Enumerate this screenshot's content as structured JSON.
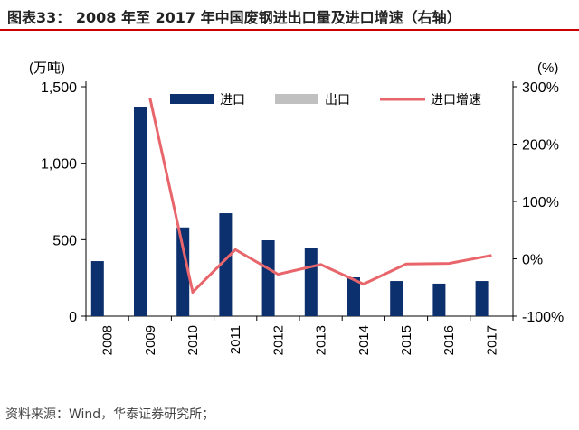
{
  "title": "图表33：  2008 年至 2017 年中国废钢进出口量及进口增速（右轴）",
  "source": "资料来源：Wind，华泰证券研究所；",
  "chart_data": {
    "type": "bar",
    "categories": [
      "2008",
      "2009",
      "2010",
      "2011",
      "2012",
      "2013",
      "2014",
      "2015",
      "2016",
      "2017"
    ],
    "series": [
      {
        "name": "进口",
        "type": "bar",
        "axis": "left",
        "color": "#0c2f6e",
        "values": [
          360,
          1370,
          580,
          673,
          496,
          443,
          254,
          230,
          213,
          230
        ]
      },
      {
        "name": "出口",
        "type": "bar",
        "axis": "left",
        "color": "#c0c0c0",
        "values": [
          0,
          0,
          0,
          0,
          0,
          0,
          0,
          0,
          0,
          0
        ]
      },
      {
        "name": "进口增速",
        "type": "line",
        "axis": "right",
        "color": "#e8666b",
        "values": [
          null,
          280,
          -58,
          16,
          -27,
          -10,
          -44,
          -9,
          -8,
          6
        ]
      }
    ],
    "ylabel": "(万吨)",
    "ylabel_right": "(%)",
    "ylim": [
      0,
      1500
    ],
    "ylim_right": [
      -100,
      300
    ],
    "yticks": [
      "0",
      "500",
      "1,000",
      "1,500"
    ],
    "yticks_values": [
      0,
      500,
      1000,
      1500
    ],
    "yticks_right": [
      "-100%",
      "0%",
      "100%",
      "200%",
      "300%"
    ],
    "yticks_right_values": [
      -100,
      0,
      100,
      200,
      300
    ],
    "legend_position": "top"
  }
}
